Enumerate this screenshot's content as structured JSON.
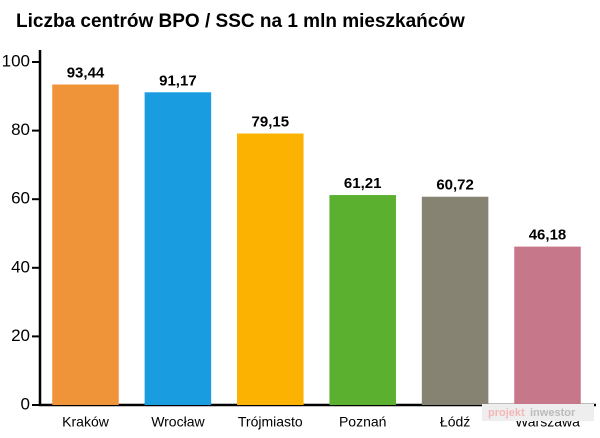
{
  "chart_data": {
    "type": "bar",
    "title": "Liczba centrów BPO / SSC na 1 mln mieszkańców",
    "categories": [
      "Kraków",
      "Wrocław",
      "Trójmiasto",
      "Poznań",
      "Łódź",
      "Warszawa"
    ],
    "values": [
      93.44,
      91.17,
      79.15,
      61.21,
      60.72,
      46.18
    ],
    "value_labels": [
      "93,44",
      "91,17",
      "79,15",
      "61,21",
      "60,72",
      "46,18"
    ],
    "colors": [
      "#f0943a",
      "#1a9de0",
      "#fbb200",
      "#5bb030",
      "#868372",
      "#c7778a"
    ],
    "ylim": [
      0,
      100
    ],
    "yticks": [
      0,
      20,
      40,
      60,
      80,
      100
    ],
    "grid": false,
    "watermark": [
      "projekt",
      "inwestor"
    ]
  }
}
